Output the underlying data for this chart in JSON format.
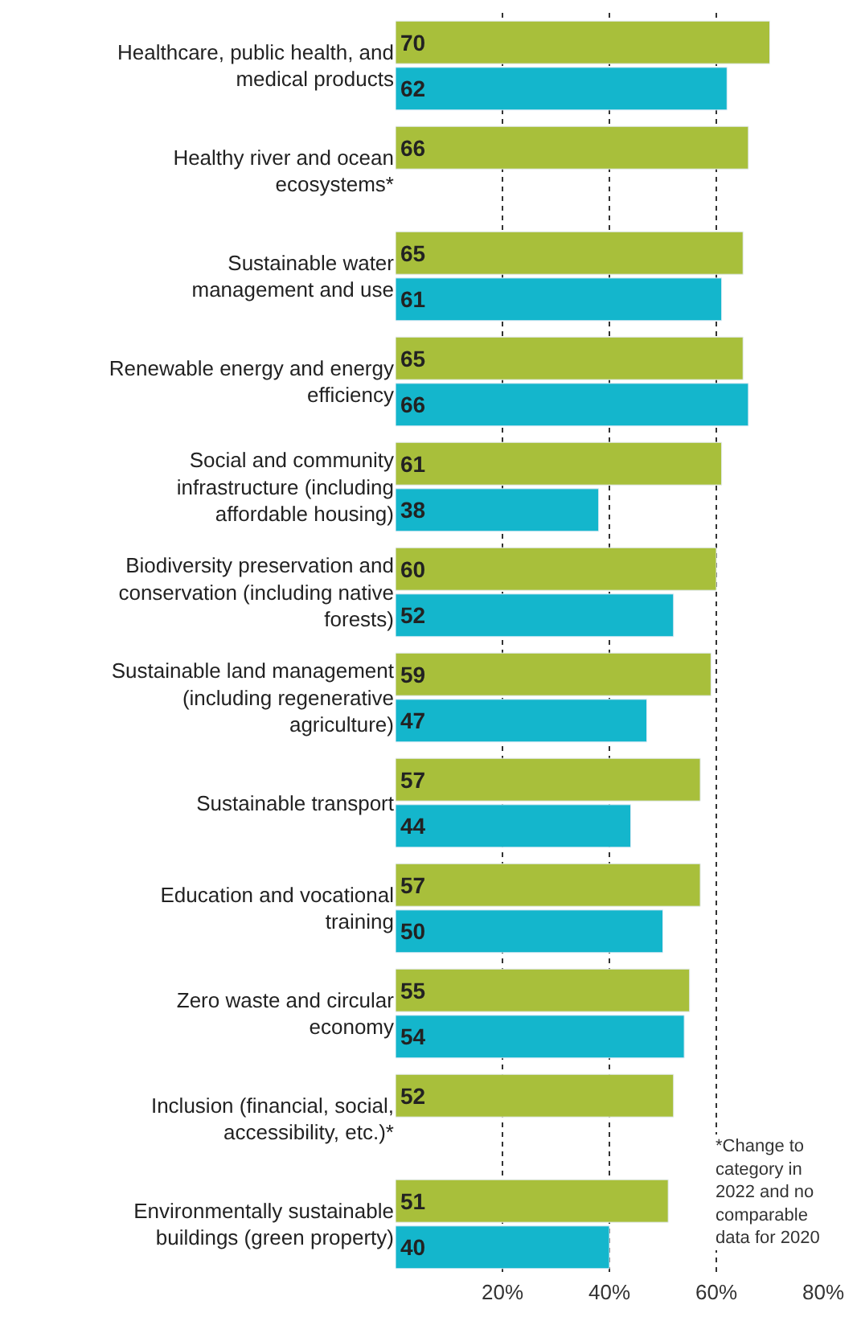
{
  "chart_data": {
    "type": "bar",
    "orientation": "horizontal",
    "categories": [
      "Healthcare, public health, and\nmedical products",
      "Healthy river and ocean\necosystems*",
      "Sustainable water\nmanagement and use",
      "Renewable energy and energy\nefficiency",
      "Social and community\ninfrastructure (including\naffordable housing)",
      "Biodiversity preservation and\nconservation (including native\nforests)",
      "Sustainable land management\n(including regenerative\nagriculture)",
      "Sustainable transport",
      "Education and vocational\ntraining",
      "Zero waste and circular\neconomy",
      "Inclusion (financial, social,\naccessibility, etc.)*",
      "Environmentally sustainable\nbuildings (green property)"
    ],
    "series": [
      {
        "color": "#a8bf3b",
        "values": [
          70,
          66,
          65,
          65,
          61,
          60,
          59,
          57,
          57,
          55,
          52,
          51
        ]
      },
      {
        "color": "#14b6cc",
        "values": [
          62,
          null,
          61,
          66,
          38,
          52,
          47,
          44,
          50,
          54,
          null,
          40
        ]
      }
    ],
    "xlim": [
      0,
      80
    ],
    "xticks": [
      {
        "value": 20,
        "label": "20%"
      },
      {
        "value": 40,
        "label": "40%"
      },
      {
        "value": 60,
        "label": "60%"
      },
      {
        "value": 80,
        "label": "80%"
      }
    ],
    "grid": "x",
    "data_labels": true,
    "annotations": [
      "*Change to\ncategory in\n2022 and no\ncomparable\ndata for 2020"
    ]
  }
}
